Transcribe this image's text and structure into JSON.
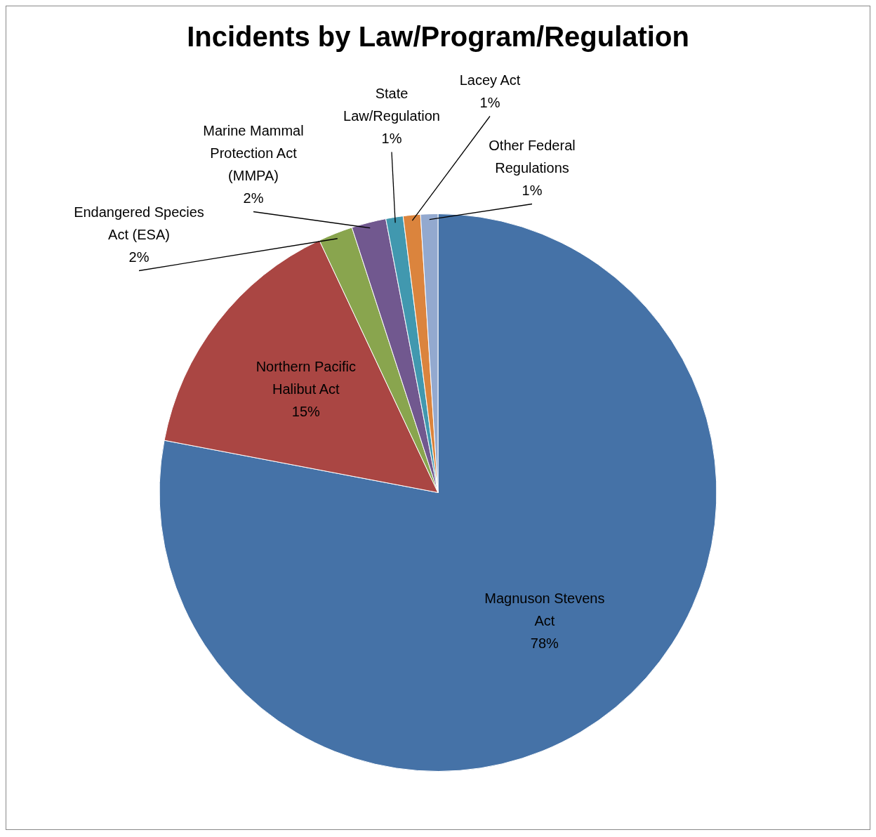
{
  "chart_data": {
    "type": "pie",
    "title": "Incidents by Law/Program/Regulation",
    "categories": [
      "Magnuson Stevens Act",
      "Northern Pacific Halibut Act",
      "Endangered Species Act (ESA)",
      "Marine Mammal Protection Act (MMPA)",
      "State Law/Regulation",
      "Lacey Act",
      "Other Federal Regulations"
    ],
    "values": [
      78,
      15,
      2,
      2,
      1,
      1,
      1
    ],
    "colors": [
      "#4572a7",
      "#aa4643",
      "#89a54e",
      "#71588f",
      "#4198af",
      "#db843d",
      "#93a9cf"
    ],
    "value_labels": [
      "78%",
      "15%",
      "2%",
      "2%",
      "1%",
      "1%",
      "1%"
    ],
    "legend": false
  }
}
